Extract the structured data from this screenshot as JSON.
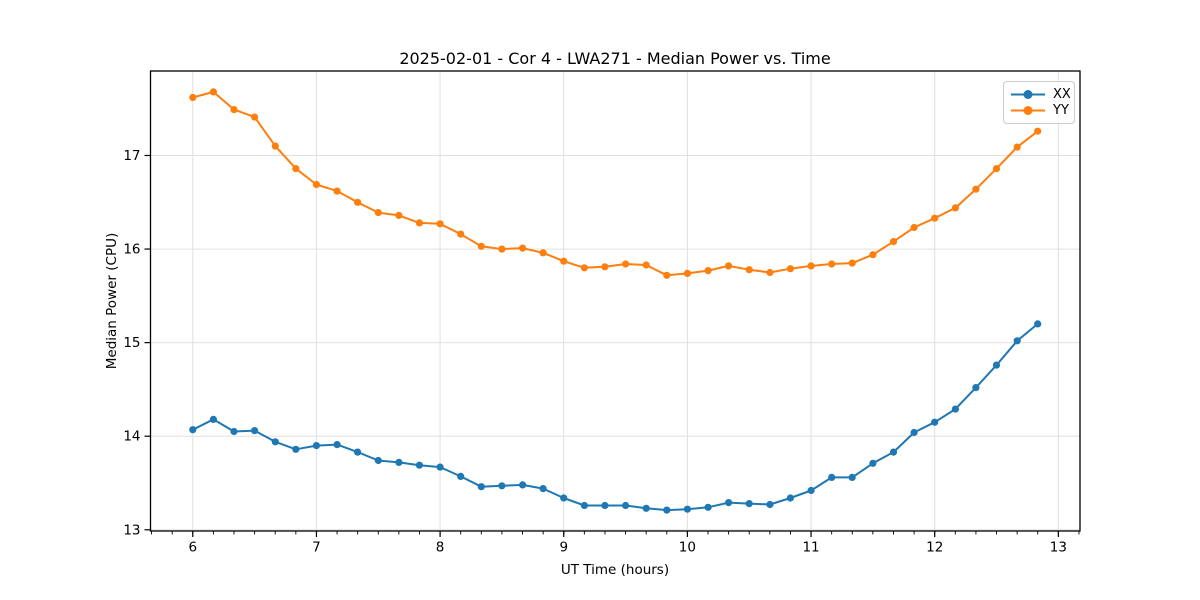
{
  "chart_data": {
    "type": "line",
    "title": "2025-02-01 - Cor 4 - LWA271 - Median Power vs. Time",
    "xlabel": "UT Time (hours)",
    "ylabel": "Median Power (CPU)",
    "xlim": [
      5.658,
      13.175
    ],
    "ylim": [
      12.987,
      17.903
    ],
    "xticks": [
      6,
      7,
      8,
      9,
      10,
      11,
      12,
      13
    ],
    "yticks": [
      13,
      14,
      15,
      16,
      17
    ],
    "xtick_minor_step": 0.166667,
    "grid": true,
    "grid_color": "#e0e0e0",
    "spine_color": "#000000",
    "legend_position": "upper right",
    "marker": "o",
    "x": [
      6.0,
      6.167,
      6.333,
      6.5,
      6.667,
      6.833,
      7.0,
      7.167,
      7.333,
      7.5,
      7.667,
      7.833,
      8.0,
      8.167,
      8.333,
      8.5,
      8.667,
      8.833,
      9.0,
      9.167,
      9.333,
      9.5,
      9.667,
      9.833,
      10.0,
      10.167,
      10.333,
      10.5,
      10.667,
      10.833,
      11.0,
      11.167,
      11.333,
      11.5,
      11.667,
      11.833,
      12.0,
      12.167,
      12.333,
      12.5,
      12.667,
      12.833
    ],
    "series": [
      {
        "name": "XX",
        "color": "#1f77b4",
        "values": [
          14.07,
          14.18,
          14.05,
          14.06,
          13.94,
          13.86,
          13.9,
          13.91,
          13.83,
          13.74,
          13.72,
          13.69,
          13.67,
          13.57,
          13.46,
          13.47,
          13.48,
          13.44,
          13.34,
          13.26,
          13.26,
          13.26,
          13.23,
          13.21,
          13.22,
          13.24,
          13.29,
          13.28,
          13.27,
          13.34,
          13.42,
          13.56,
          13.56,
          13.71,
          13.83,
          14.04,
          14.15,
          14.29,
          14.52,
          14.76,
          15.02,
          15.2
        ]
      },
      {
        "name": "YY",
        "color": "#ff7f0e",
        "values": [
          17.62,
          17.68,
          17.49,
          17.41,
          17.1,
          16.86,
          16.69,
          16.62,
          16.5,
          16.39,
          16.36,
          16.28,
          16.27,
          16.16,
          16.03,
          16.0,
          16.01,
          15.96,
          15.87,
          15.8,
          15.81,
          15.84,
          15.83,
          15.72,
          15.74,
          15.77,
          15.82,
          15.78,
          15.75,
          15.79,
          15.82,
          15.84,
          15.85,
          15.94,
          16.08,
          16.23,
          16.33,
          16.44,
          16.64,
          16.86,
          17.09,
          17.26
        ]
      }
    ]
  }
}
